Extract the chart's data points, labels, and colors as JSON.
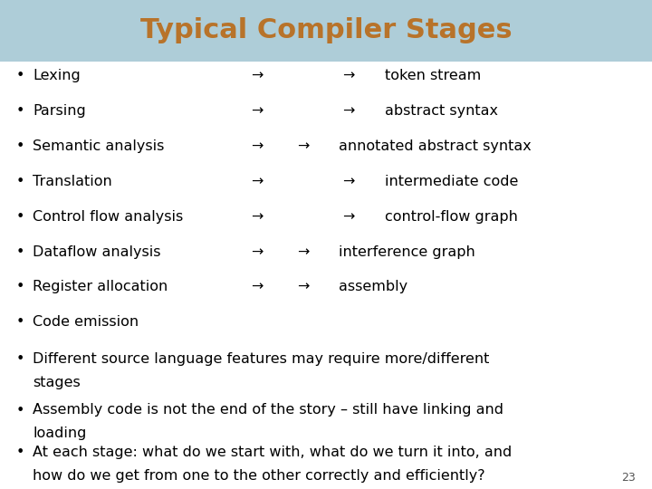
{
  "title": "Typical Compiler Stages",
  "title_color": "#B8732A",
  "title_bg_color": "#AECDD8",
  "background_color": "#FFFFFF",
  "bullet_color": "#000000",
  "font_size": 11.5,
  "title_font_size": 22,
  "slide_number": "23",
  "bullet_items_col1": [
    "Lexing",
    "Parsing",
    "Semantic analysis",
    "Translation",
    "Control flow analysis",
    "Dataflow analysis",
    "Register allocation",
    "Code emission"
  ],
  "has_arrow1": [
    true,
    true,
    true,
    true,
    true,
    true,
    true,
    false
  ],
  "arrow1_x": [
    0.385,
    0.385,
    0.385,
    0.385,
    0.385,
    0.385,
    0.385,
    null
  ],
  "has_arrow2": [
    true,
    true,
    true,
    true,
    true,
    true,
    true,
    false
  ],
  "arrow2_x": [
    0.525,
    0.525,
    0.455,
    0.525,
    0.525,
    0.455,
    0.455,
    null
  ],
  "col2_x": [
    0.565,
    0.565,
    0.495,
    0.565,
    0.565,
    0.495,
    0.495,
    null
  ],
  "bullet_items_col2": [
    "token stream",
    "abstract syntax",
    "annotated abstract syntax",
    "intermediate code",
    "control-flow graph",
    "interference graph",
    "assembly",
    ""
  ],
  "para2": [
    "Different source language features may require more/different\nstages",
    "Assembly code is not the end of the story – still have linking and\nloading"
  ],
  "para3": [
    "At each stage: what do we start with, what do we turn it into, and\nhow do we get from one to the other correctly and efficiently?"
  ]
}
